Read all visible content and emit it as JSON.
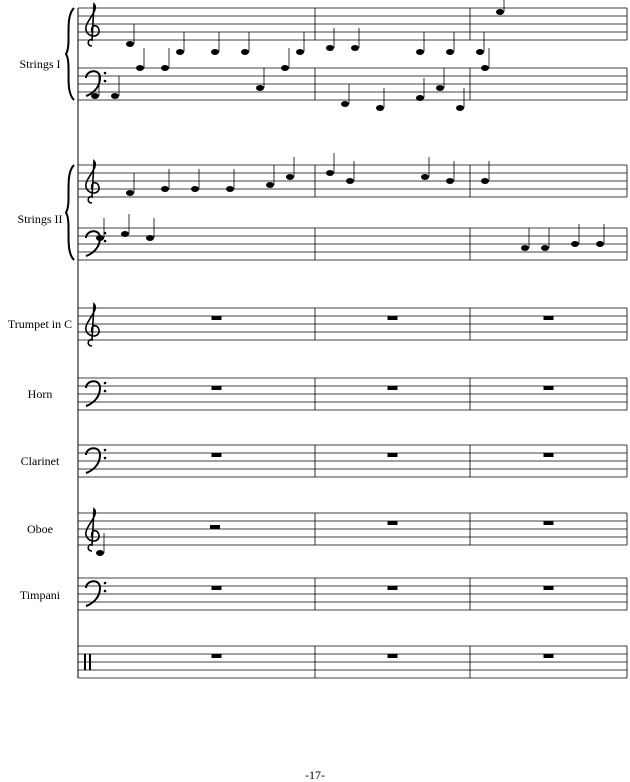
{
  "instruments": [
    {
      "label": "Strings I"
    },
    {
      "label": "Strings II"
    },
    {
      "label": "Trumpet in C"
    },
    {
      "label": "Horn"
    },
    {
      "label": "Clarinet"
    },
    {
      "label": "Oboe"
    },
    {
      "label": "Timpani"
    }
  ],
  "page_number": "-17-"
}
